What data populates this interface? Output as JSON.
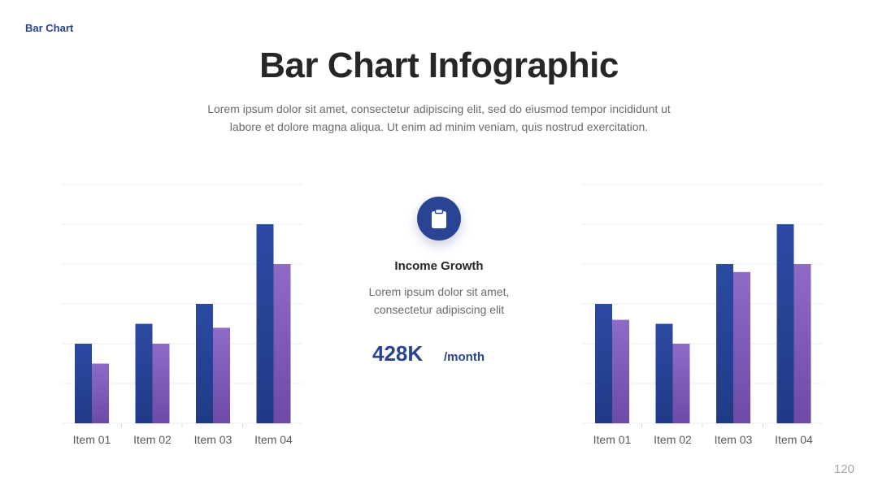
{
  "header": {
    "section_label": "Bar Chart"
  },
  "title": "Bar Chart Infographic",
  "subtitle": "Lorem ipsum dolor sit amet, consectetur adipiscing elit, sed do eiusmod tempor incididunt ut labore et dolore magna aliqua. Ut enim ad minim veniam, quis nostrud exercitation.",
  "center_panel": {
    "icon": "clipboard-icon",
    "title": "Income Growth",
    "description_line1": "Lorem ipsum dolor sit amet,",
    "description_line2": "consectetur adipiscing elit",
    "value": "428K",
    "unit": "/month"
  },
  "page_number": "120",
  "colors": {
    "accent": "#2a4390",
    "series1": "#2a4393",
    "series2": "#7f5cb8",
    "grid": "#ececec"
  },
  "chart_data": [
    {
      "type": "bar",
      "categories": [
        "Item 01",
        "Item 02",
        "Item 03",
        "Item 04"
      ],
      "series": [
        {
          "values": [
            2,
            2.5,
            3,
            5
          ]
        },
        {
          "values": [
            1.5,
            2,
            2.4,
            4
          ]
        }
      ],
      "ylim": [
        0,
        6
      ],
      "grid": true
    },
    {
      "type": "bar",
      "categories": [
        "Item 01",
        "Item 02",
        "Item 03",
        "Item 04"
      ],
      "series": [
        {
          "values": [
            3,
            2.5,
            4,
            5
          ]
        },
        {
          "values": [
            2.6,
            2,
            3.8,
            4
          ]
        }
      ],
      "ylim": [
        0,
        6
      ],
      "grid": true
    }
  ]
}
